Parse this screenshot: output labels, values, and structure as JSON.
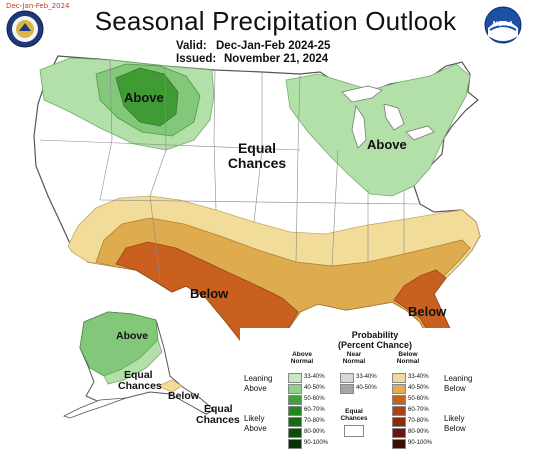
{
  "corner_tag": "Dec-Jan-Feb_2024",
  "title": "Seasonal Precipitation Outlook",
  "valid_label": "Valid:",
  "valid_value": "Dec-Jan-Feb 2024-25",
  "issued_label": "Issued:",
  "issued_value": "November 21, 2024",
  "logos": {
    "left_icon": "doc-seal-icon",
    "right_icon": "noaa-logo-icon",
    "noaa_text": "NOAA"
  },
  "map_labels": {
    "above_nw": "Above",
    "above_ne": "Above",
    "equal_chances": [
      "Equal",
      "Chances"
    ],
    "below_south": "Below",
    "below_se": "Below"
  },
  "alaska_labels": {
    "above": "Above",
    "equal_1": [
      "Equal",
      "Chances"
    ],
    "below": "Below",
    "equal_2": [
      "Equal",
      "Chances"
    ]
  },
  "colors": {
    "above_33_40": "#b3dfa8",
    "above_40_50": "#82c77a",
    "above_50_60": "#3f9c35",
    "below_33_40": "#f2dc9a",
    "below_40_50": "#deab4e",
    "below_50_60": "#c9601f",
    "land": "#ffffff",
    "border": "#666666"
  },
  "legend": {
    "title": [
      "Probability",
      "(Percent Chance)"
    ],
    "col_above": [
      "Above",
      "Normal"
    ],
    "col_near": [
      "Near",
      "Normal"
    ],
    "col_below": [
      "Below",
      "Normal"
    ],
    "leaning_above": [
      "Leaning",
      "Above"
    ],
    "likely_above": [
      "Likely",
      "Above"
    ],
    "leaning_below": [
      "Leaning",
      "Below"
    ],
    "likely_below": [
      "Likely",
      "Below"
    ],
    "equal_chances": [
      "Equal",
      "Chances"
    ],
    "above_swatches": [
      {
        "label": "33-40%",
        "color": "#c8e8c0"
      },
      {
        "label": "40-50%",
        "color": "#8fd08a"
      },
      {
        "label": "50-60%",
        "color": "#3da33a"
      },
      {
        "label": "60-70%",
        "color": "#1e8a1e"
      },
      {
        "label": "70-80%",
        "color": "#136e13"
      },
      {
        "label": "80-90%",
        "color": "#0b4f0b"
      },
      {
        "label": "90-100%",
        "color": "#063206"
      }
    ],
    "near_swatches": [
      {
        "label": "33-40%",
        "color": "#d7d7d7"
      },
      {
        "label": "40-50%",
        "color": "#a6a6a6"
      }
    ],
    "below_swatches": [
      {
        "label": "33-40%",
        "color": "#f1d99a"
      },
      {
        "label": "40-50%",
        "color": "#deac55"
      },
      {
        "label": "50-60%",
        "color": "#c8621f"
      },
      {
        "label": "60-70%",
        "color": "#a8421a"
      },
      {
        "label": "70-80%",
        "color": "#8a2a10"
      },
      {
        "label": "80-90%",
        "color": "#63180a"
      },
      {
        "label": "90-100%",
        "color": "#3e0c05"
      }
    ]
  }
}
